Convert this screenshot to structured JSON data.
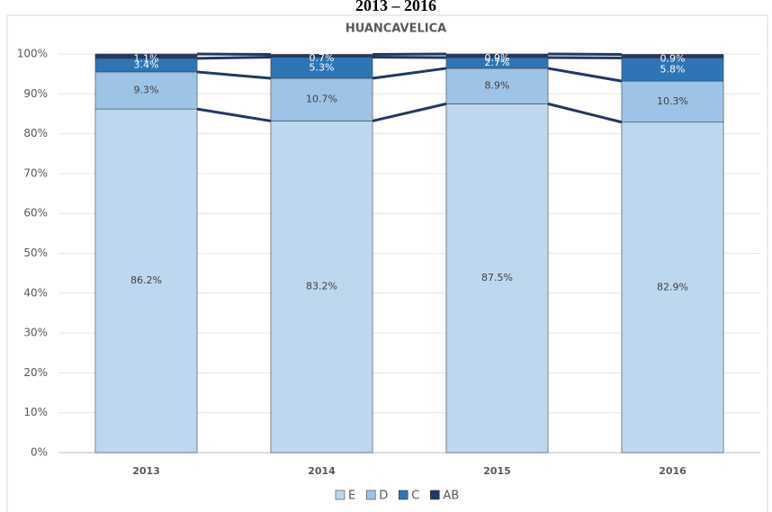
{
  "heading": "2013 – 2016",
  "chart_data": {
    "type": "stacked_bar",
    "title": "HUANCAVELICA",
    "categories": [
      "2013",
      "2014",
      "2015",
      "2016"
    ],
    "series": [
      {
        "name": "E",
        "color": "#bdd7ee",
        "values": [
          86.2,
          83.2,
          87.5,
          82.9
        ],
        "value_labels": [
          "86.2%",
          "83.2%",
          "87.5%",
          "82.9%"
        ]
      },
      {
        "name": "D",
        "color": "#9dc3e6",
        "values": [
          9.3,
          10.7,
          8.9,
          10.3
        ],
        "value_labels": [
          "9.3%",
          "10.7%",
          "8.9%",
          "10.3%"
        ]
      },
      {
        "name": "C",
        "color": "#2e75b6",
        "values": [
          3.4,
          5.3,
          2.7,
          5.8
        ],
        "value_labels": [
          "3.4%",
          "5.3%",
          "2.7%",
          "5.8%"
        ]
      },
      {
        "name": "AB",
        "color": "#203864",
        "values": [
          1.1,
          0.7,
          0.9,
          0.9
        ],
        "value_labels": [
          "1.1%",
          "0.7%",
          "0.9%",
          "0.9%"
        ]
      }
    ],
    "ylim": [
      0,
      100
    ],
    "yticks": [
      {
        "value": 0,
        "label": "0%"
      },
      {
        "value": 10,
        "label": "10%"
      },
      {
        "value": 20,
        "label": "20%"
      },
      {
        "value": 30,
        "label": "30%"
      },
      {
        "value": 40,
        "label": "40%"
      },
      {
        "value": 50,
        "label": "50%"
      },
      {
        "value": 60,
        "label": "60%"
      },
      {
        "value": 70,
        "label": "70%"
      },
      {
        "value": 80,
        "label": "80%"
      },
      {
        "value": 90,
        "label": "90%"
      },
      {
        "value": 100,
        "label": "100%"
      }
    ],
    "grid": true,
    "legend": "bottom",
    "line_color": "#203864"
  }
}
